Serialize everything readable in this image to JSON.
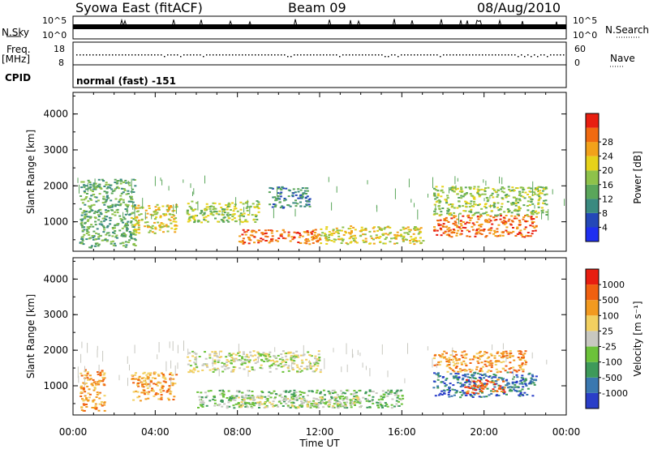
{
  "header": {
    "station": "Syowa East (fitACF)",
    "beam": "Beam 09",
    "date": "08/Aug/2010"
  },
  "strip": {
    "nsky_label": "N.Sky",
    "nsky_ticks": [
      "10^5",
      "10^0"
    ],
    "nsearch_label": "N.Search",
    "nsearch_ticks": [
      "10^5",
      "10^0"
    ],
    "freq_label": "Freq.",
    "freq_unit": "[MHz]",
    "freq_ticks": [
      "18",
      "8"
    ],
    "nave_label": "Nave",
    "nave_ticks": [
      "60",
      "0"
    ],
    "cpid_label": "CPID",
    "cpid_text": "normal (fast) -151"
  },
  "chart_data": [
    {
      "type": "heatmap",
      "name": "power-panel",
      "title": "",
      "xlabel": "Time UT",
      "ylabel": "Slant Range [km]",
      "xticks": [
        "00:00",
        "04:00",
        "08:00",
        "12:00",
        "16:00",
        "20:00",
        "00:00"
      ],
      "yticks": [
        "1000",
        "2000",
        "3000",
        "4000"
      ],
      "ylim": [
        180,
        4600
      ],
      "xlim_hours": [
        0,
        24
      ],
      "colorbar_label": "Power [dB]",
      "colorbar_ticks": [
        "4",
        "8",
        "12",
        "16",
        "20",
        "24",
        "28"
      ],
      "colorbar_colors": [
        "#1f2ff0",
        "#2448b8",
        "#3a8a80",
        "#5aa65a",
        "#8ec24a",
        "#e6d21a",
        "#f2a21a",
        "#f06a10",
        "#e81e10"
      ],
      "regions": [
        {
          "t0": 0.3,
          "t1": 3.0,
          "r0": 300,
          "r1": 2200,
          "level": 3
        },
        {
          "t0": 2.8,
          "t1": 5.0,
          "r0": 700,
          "r1": 1500,
          "level": 5
        },
        {
          "t0": 5.5,
          "t1": 9.0,
          "r0": 1000,
          "r1": 1600,
          "level": 4
        },
        {
          "t0": 8.0,
          "t1": 12.0,
          "r0": 400,
          "r1": 800,
          "level": 7
        },
        {
          "t0": 12.0,
          "t1": 17.0,
          "r0": 400,
          "r1": 900,
          "level": 5
        },
        {
          "t0": 17.5,
          "t1": 22.5,
          "r0": 600,
          "r1": 1200,
          "level": 7
        },
        {
          "t0": 17.5,
          "t1": 23.0,
          "r0": 1200,
          "r1": 2000,
          "level": 4
        },
        {
          "t0": 9.5,
          "t1": 11.5,
          "r0": 1400,
          "r1": 2000,
          "level": 2
        }
      ]
    },
    {
      "type": "heatmap",
      "name": "velocity-panel",
      "title": "",
      "xlabel": "Time UT",
      "ylabel": "Slant Range [km]",
      "xticks": [
        "00:00",
        "04:00",
        "08:00",
        "12:00",
        "16:00",
        "20:00",
        "00:00"
      ],
      "yticks": [
        "1000",
        "2000",
        "3000",
        "4000"
      ],
      "ylim": [
        180,
        4600
      ],
      "xlim_hours": [
        0,
        24
      ],
      "colorbar_label": "Velocity [m s⁻¹]",
      "colorbar_ticks": [
        "1000",
        "500",
        "100",
        "25",
        "-25",
        "-100",
        "-500",
        "-1000"
      ],
      "colorbar_colors": [
        "#2a3ec8",
        "#3a78b0",
        "#3e9a5a",
        "#6cc23a",
        "#c8c8c0",
        "#f2d060",
        "#f29a20",
        "#f06010",
        "#e81e10"
      ],
      "regions": [
        {
          "t0": 0.3,
          "t1": 1.5,
          "r0": 300,
          "r1": 1500,
          "level": 6
        },
        {
          "t0": 2.8,
          "t1": 5.0,
          "r0": 600,
          "r1": 1400,
          "level": 6
        },
        {
          "t0": 5.5,
          "t1": 12.0,
          "r0": 1400,
          "r1": 2000,
          "level": 4
        },
        {
          "t0": 6.0,
          "t1": 16.0,
          "r0": 400,
          "r1": 900,
          "level": 3
        },
        {
          "t0": 8.0,
          "t1": 14.0,
          "r0": 400,
          "r1": 700,
          "level": 4
        },
        {
          "t0": 17.5,
          "t1": 22.5,
          "r0": 700,
          "r1": 1400,
          "level": 1
        },
        {
          "t0": 17.5,
          "t1": 22.0,
          "r0": 1400,
          "r1": 2000,
          "level": 6
        },
        {
          "t0": 19.0,
          "t1": 21.0,
          "r0": 800,
          "r1": 1200,
          "level": 7
        }
      ]
    }
  ]
}
